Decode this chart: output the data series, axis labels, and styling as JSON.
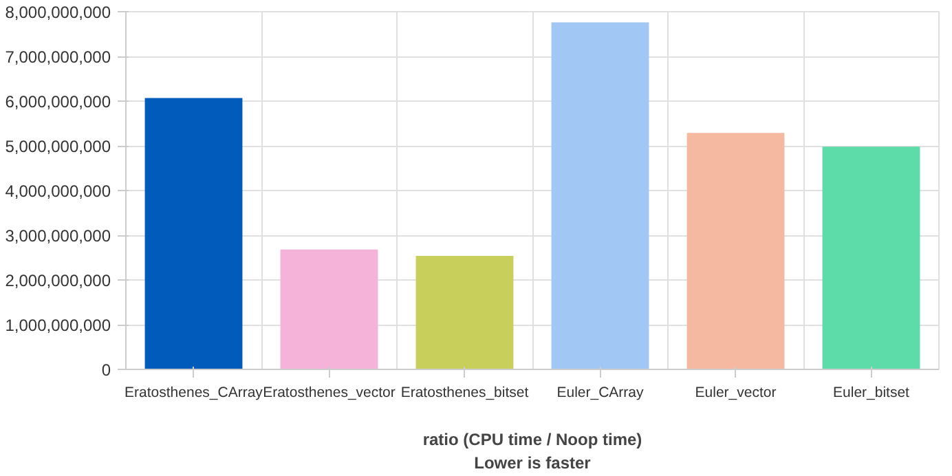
{
  "chart_data": {
    "type": "bar",
    "xlabel": "ratio (CPU time / Noop time)\nLower is faster",
    "categories": [
      "Eratosthenes_CArray",
      "Eratosthenes_vector",
      "Eratosthenes_bitset",
      "Euler_CArray",
      "Euler_vector",
      "Euler_bitset"
    ],
    "values": [
      6070000000,
      2680000000,
      2540000000,
      7760000000,
      5290000000,
      4980000000
    ],
    "colors": [
      "#005bbb",
      "#f5b3da",
      "#c8cf5a",
      "#a1c8f4",
      "#f5b9a1",
      "#5ddba9"
    ],
    "ylim": [
      0,
      8000000000
    ],
    "yticks": [
      {
        "value": 0,
        "label": "0"
      },
      {
        "value": 1000000000,
        "label": "1,000,000,000"
      },
      {
        "value": 2000000000,
        "label": "2,000,000,000"
      },
      {
        "value": 3000000000,
        "label": "3,000,000,000"
      },
      {
        "value": 4000000000,
        "label": "4,000,000,000"
      },
      {
        "value": 5000000000,
        "label": "5,000,000,000"
      },
      {
        "value": 6000000000,
        "label": "6,000,000,000"
      },
      {
        "value": 7000000000,
        "label": "7,000,000,000"
      },
      {
        "value": 8000000000,
        "label": "8,000,000,000"
      }
    ],
    "grid": true
  }
}
